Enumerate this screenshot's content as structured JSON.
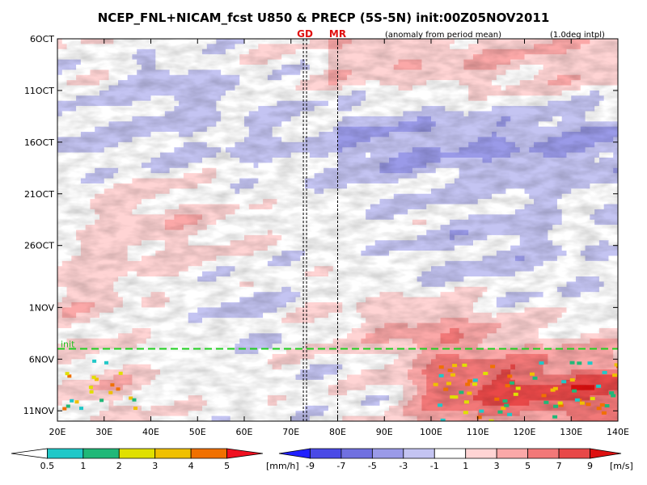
{
  "chart_data": {
    "type": "heatmap",
    "title": "NCEP_FNL+NICAM_fcst U850 & PRECP (5S-5N) init:00Z05NOV2011",
    "subtitle_left": "(anomaly from period mean)",
    "subtitle_right": "(1.0deg intpl)",
    "x_ticks": [
      "20E",
      "30E",
      "40E",
      "50E",
      "60E",
      "70E",
      "80E",
      "90E",
      "100E",
      "110E",
      "120E",
      "130E",
      "140E"
    ],
    "x_range": [
      20,
      140
    ],
    "y_ticks": [
      "6OCT",
      "11OCT",
      "16OCT",
      "21OCT",
      "26OCT",
      "1NOV",
      "6NOV",
      "11NOV"
    ],
    "y_tick_days": [
      6,
      11,
      16,
      21,
      26,
      32,
      37,
      42
    ],
    "y_range_days": [
      6,
      43
    ],
    "init_label": "init",
    "init_day": 36,
    "markers": [
      {
        "label": "GD",
        "lon": 73
      },
      {
        "label": "MR",
        "lon": 80
      }
    ],
    "field": "U850 anomaly (shaded) with precipitation (spots)",
    "u_colorbar": {
      "levels": [
        "-9",
        "-7",
        "-5",
        "-3",
        "-1",
        "1",
        "3",
        "5",
        "7",
        "9"
      ],
      "units": "[m/s]",
      "colors": [
        "#2020ff",
        "#4a4ae6",
        "#7070e0",
        "#9a9ae8",
        "#c4c4f2",
        "#ffffff",
        "#ffd4d4",
        "#fba8a8",
        "#f27878",
        "#e84848",
        "#dd1010"
      ]
    },
    "precip_colorbar": {
      "levels": [
        "0.5",
        "1",
        "2",
        "3",
        "4",
        "5"
      ],
      "units": "[mm/h]",
      "colors": [
        "#ffffff",
        "#20c8c8",
        "#20b878",
        "#e0e000",
        "#f0c000",
        "#f07000",
        "#f01020"
      ]
    }
  }
}
